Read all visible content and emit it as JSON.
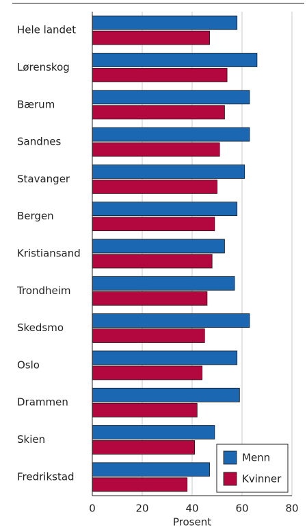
{
  "chart_data": {
    "type": "barh",
    "categories": [
      "Hele landet",
      "Lørenskog",
      "Bærum",
      "Sandnes",
      "Stavanger",
      "Bergen",
      "Kristiansand",
      "Trondheim",
      "Skedsmo",
      "Oslo",
      "Drammen",
      "Skien",
      "Fredrikstad"
    ],
    "series": [
      {
        "name": "Menn",
        "color": "#1c67b2",
        "values": [
          58,
          66,
          63,
          63,
          61,
          58,
          53,
          57,
          63,
          58,
          59,
          49,
          47
        ]
      },
      {
        "name": "Kvinner",
        "color": "#b3083f",
        "values": [
          47,
          54,
          53,
          51,
          50,
          49,
          48,
          46,
          45,
          44,
          42,
          41,
          38
        ]
      }
    ],
    "xlabel": "Prosent",
    "xlim": [
      0,
      80
    ],
    "xticks": [
      0,
      20,
      40,
      60,
      80
    ],
    "grid": true,
    "legend": "lower right"
  }
}
